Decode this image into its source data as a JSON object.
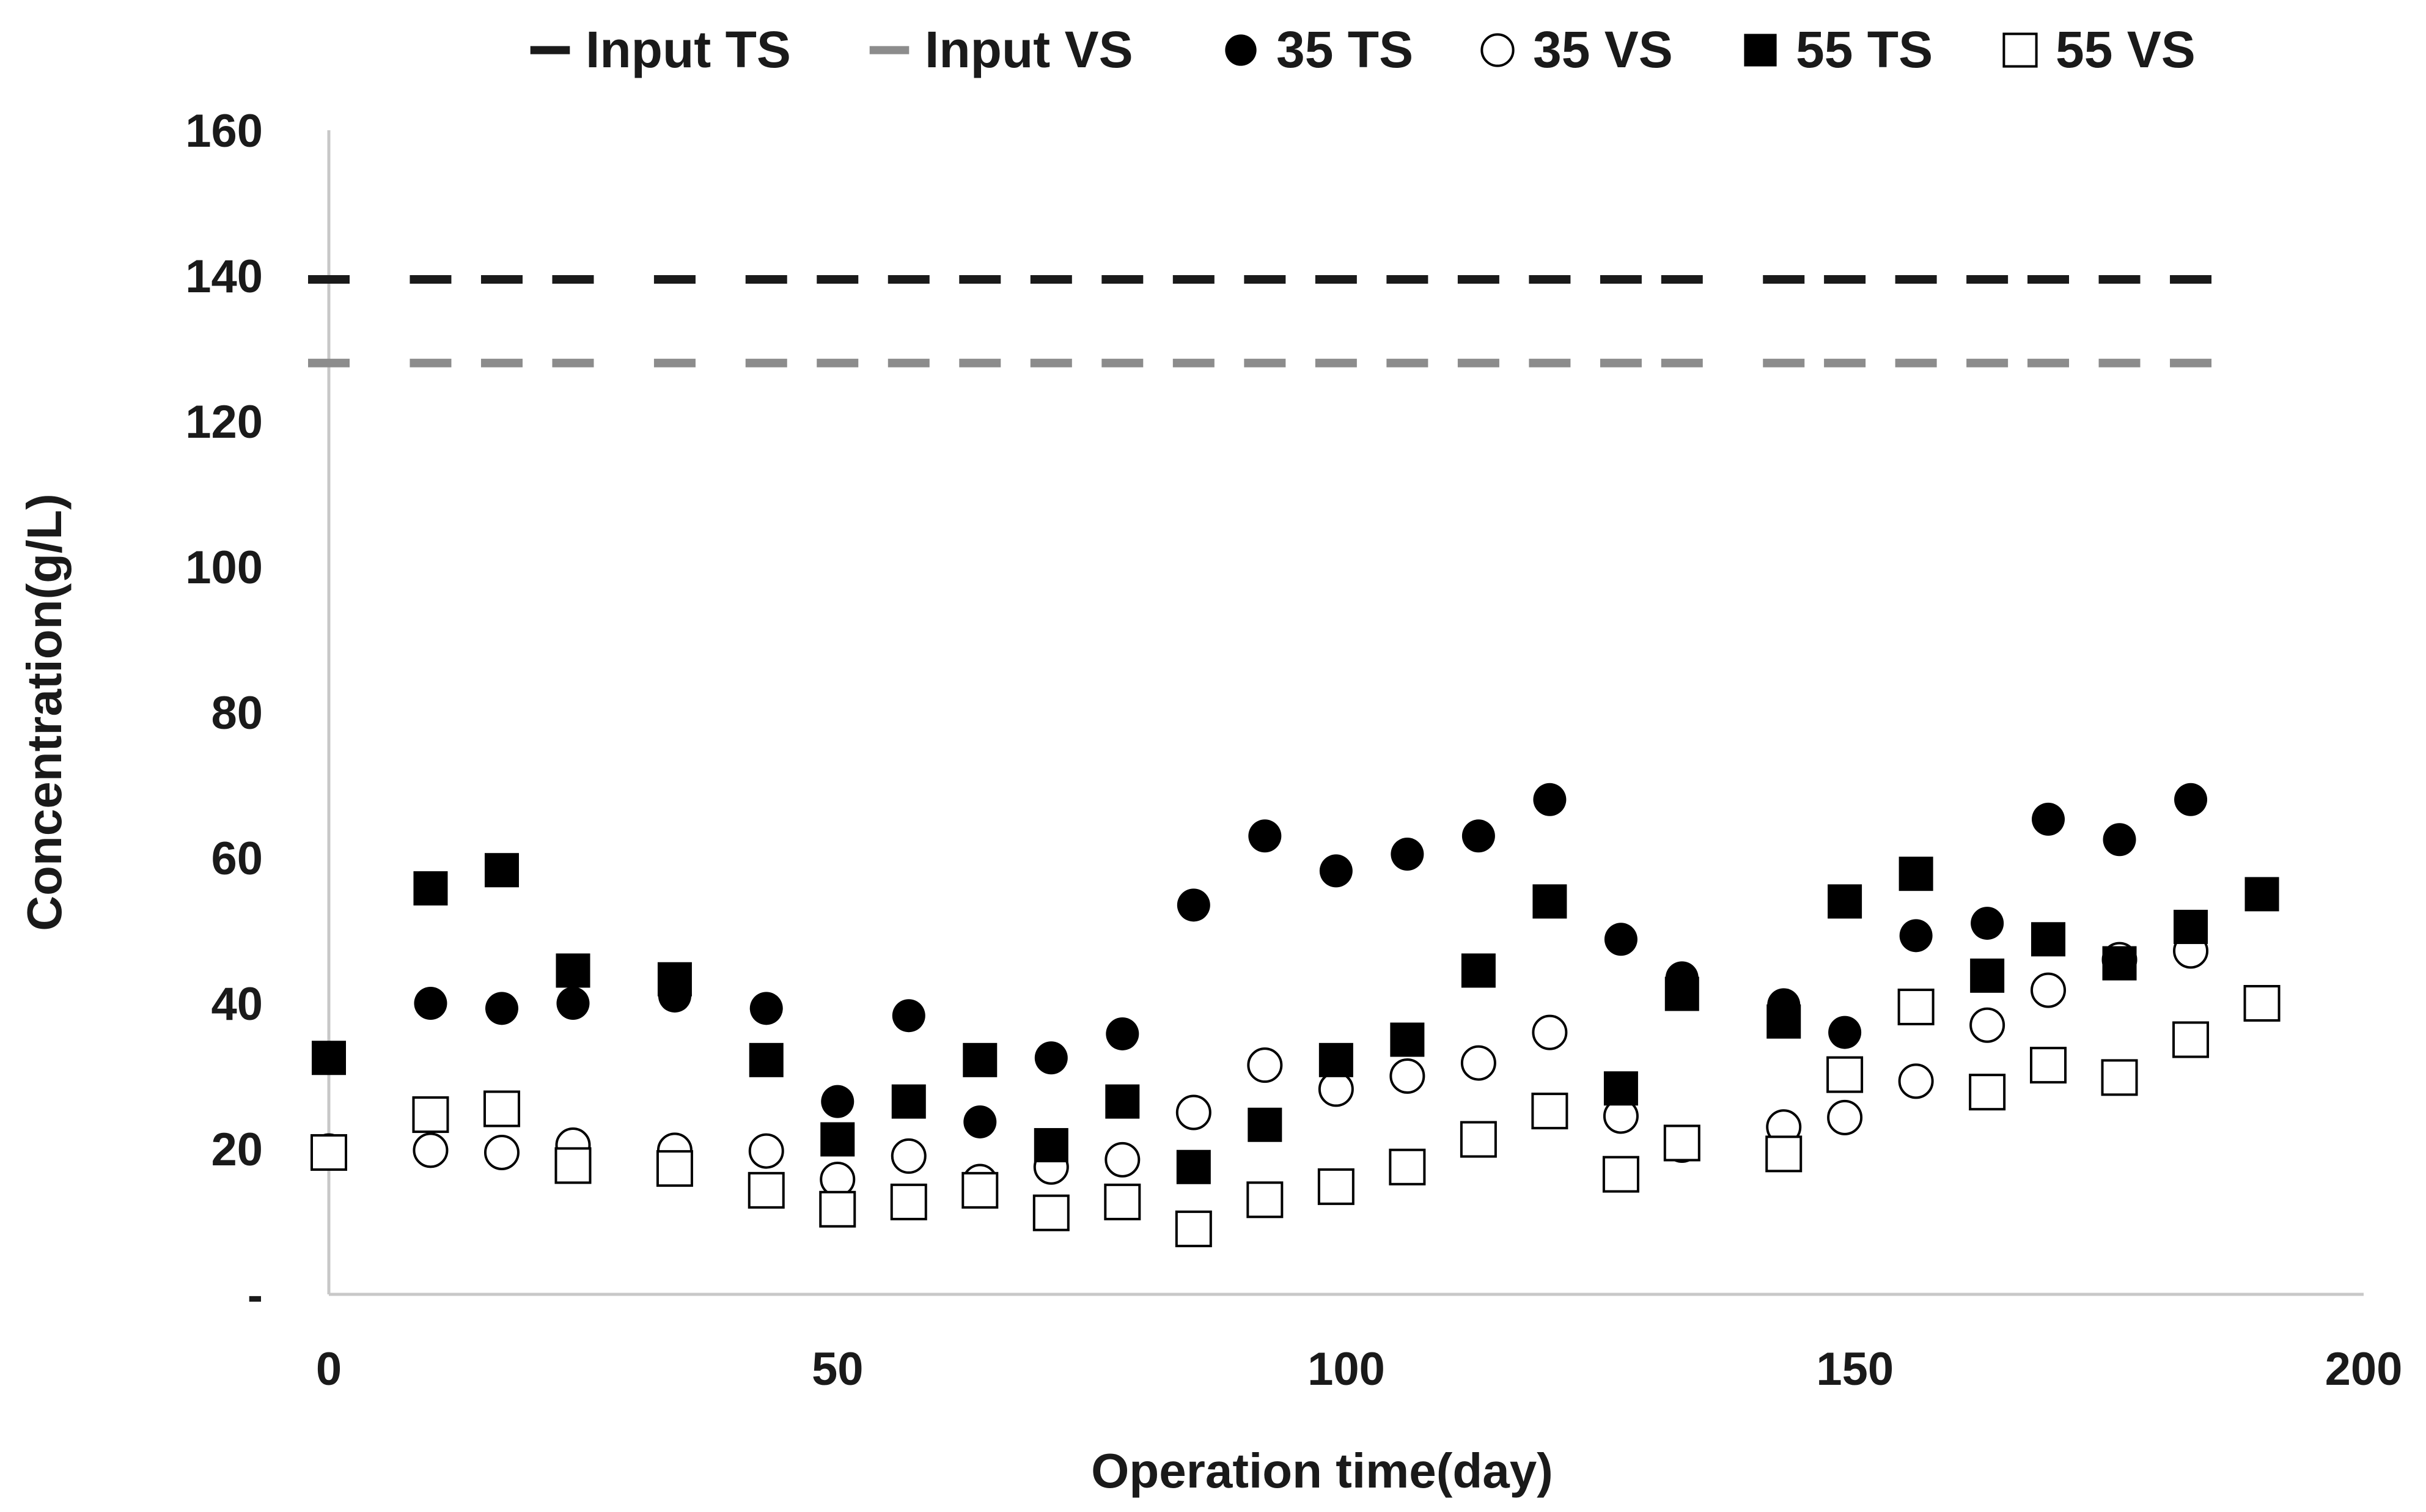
{
  "chart_data": {
    "type": "scatter",
    "title": "",
    "xlabel": "Operation time(day)",
    "ylabel": "Concentration(g/L)",
    "xlim": [
      0,
      200
    ],
    "ylim": [
      0,
      160
    ],
    "xticks": [
      0,
      50,
      100,
      150,
      200
    ],
    "yticks": [
      0,
      20,
      40,
      60,
      80,
      100,
      120,
      140,
      160
    ],
    "ytick_labels": [
      "-",
      "20",
      "40",
      "60",
      "80",
      "100",
      "120",
      "140",
      "160"
    ],
    "grid": false,
    "legend_position": "top",
    "series": [
      {
        "name": "Input TS",
        "marker": "dash",
        "color": "#1a1a1a",
        "x": [
          0,
          10,
          17,
          24,
          34,
          43,
          50,
          57,
          64,
          71,
          78,
          85,
          92,
          99,
          106,
          113,
          120,
          127,
          133,
          143,
          149,
          156,
          163,
          169,
          176,
          183
        ],
        "y": [
          139.5,
          139.5,
          139.5,
          139.5,
          139.5,
          139.5,
          139.5,
          139.5,
          139.5,
          139.5,
          139.5,
          139.5,
          139.5,
          139.5,
          139.5,
          139.5,
          139.5,
          139.5,
          139.5,
          139.5,
          139.5,
          139.5,
          139.5,
          139.5,
          139.5,
          139.5
        ]
      },
      {
        "name": "Input VS",
        "marker": "dash",
        "color": "#8c8c8c",
        "x": [
          0,
          10,
          17,
          24,
          34,
          43,
          50,
          57,
          64,
          71,
          78,
          85,
          92,
          99,
          106,
          113,
          120,
          127,
          133,
          143,
          149,
          156,
          163,
          169,
          176,
          183
        ],
        "y": [
          128,
          128,
          128,
          128,
          128,
          128,
          128,
          128,
          128,
          128,
          128,
          128,
          128,
          128,
          128,
          128,
          128,
          128,
          128,
          128,
          128,
          128,
          128,
          128,
          128,
          128
        ]
      },
      {
        "name": "35 TS",
        "marker": "filled-circle",
        "color": "#000000",
        "x": [
          10,
          17,
          24,
          34,
          43,
          50,
          57,
          64,
          71,
          78,
          85,
          92,
          99,
          106,
          113,
          120,
          127,
          133,
          143,
          149,
          156,
          163,
          169,
          176,
          183
        ],
        "y": [
          40,
          39.3,
          40,
          41,
          39.3,
          26.5,
          38.3,
          23.7,
          32.5,
          35.8,
          53.5,
          63,
          58.2,
          60.5,
          63,
          68,
          48.8,
          43.5,
          39.8,
          36,
          49.3,
          51,
          65.3,
          62.5,
          68
        ]
      },
      {
        "name": "35 VS",
        "marker": "open-circle",
        "color": "#000000",
        "x": [
          0,
          10,
          17,
          24,
          34,
          43,
          50,
          57,
          64,
          71,
          78,
          85,
          92,
          99,
          106,
          113,
          120,
          127,
          133,
          143,
          149,
          156,
          163,
          169,
          176,
          183
        ],
        "y": [
          19.7,
          19.8,
          19.5,
          20.5,
          19.8,
          19.7,
          15.8,
          19,
          15.5,
          17.5,
          18.5,
          25,
          31.5,
          28.2,
          30,
          31.8,
          36,
          24.5,
          20.5,
          23,
          24.3,
          29.3,
          37,
          41.8,
          46,
          47.2
        ]
      },
      {
        "name": "55 TS",
        "marker": "filled-square",
        "color": "#000000",
        "x": [
          0,
          10,
          17,
          24,
          34,
          43,
          50,
          57,
          64,
          71,
          78,
          85,
          92,
          99,
          106,
          113,
          120,
          127,
          133,
          143,
          149,
          156,
          163,
          169,
          176,
          183,
          190
        ],
        "y": [
          32.5,
          55.8,
          58.3,
          44.5,
          43.3,
          32.2,
          21.3,
          26.5,
          32.2,
          20.5,
          26.5,
          17.5,
          23.3,
          32.2,
          35,
          44.5,
          54,
          28.3,
          41.3,
          37.5,
          54,
          57.8,
          43.8,
          48.8,
          45.5,
          50.5,
          55
        ]
      },
      {
        "name": "55 VS",
        "marker": "open-square",
        "color": "#000000",
        "x": [
          0,
          10,
          17,
          24,
          34,
          43,
          50,
          57,
          64,
          71,
          78,
          85,
          92,
          99,
          106,
          113,
          120,
          127,
          133,
          143,
          149,
          156,
          163,
          169,
          176,
          183,
          190
        ],
        "y": [
          19.5,
          24.7,
          25.5,
          17.7,
          17.3,
          14.3,
          11.7,
          12.7,
          14.3,
          11.2,
          12.7,
          9,
          13,
          14.8,
          17.5,
          21.3,
          25.2,
          16.5,
          20.8,
          19.3,
          30.2,
          39.5,
          27.8,
          31.5,
          29.8,
          35,
          40
        ]
      }
    ]
  }
}
